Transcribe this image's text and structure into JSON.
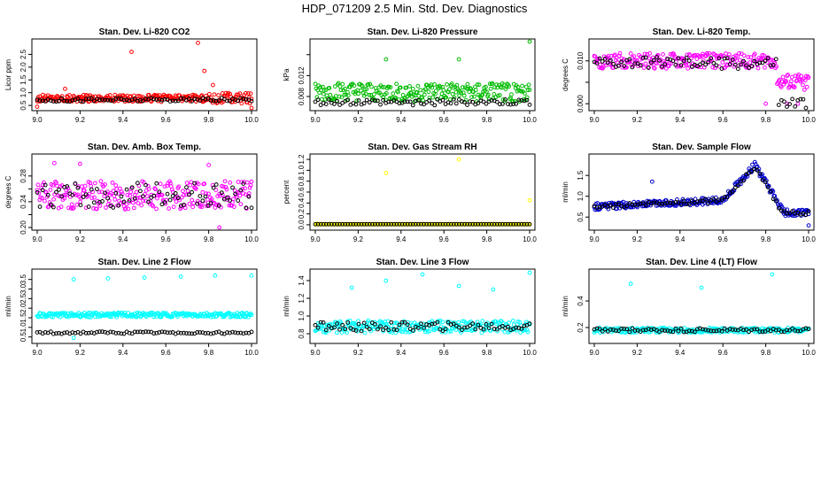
{
  "page_title": "HDP_071209  2.5 Min. Std. Dev. Diagnostics",
  "chart_data": [
    {
      "id": "co2",
      "type": "scatter",
      "title": "Stan. Dev. Li-820 CO2",
      "ylabel": "Licor ppm",
      "xlim": [
        9.0,
        10.0
      ],
      "ylim": [
        0.4,
        3.0
      ],
      "xticks": [
        "9.0",
        "9.2",
        "9.4",
        "9.6",
        "9.8",
        "10.0"
      ],
      "yticks": [
        0.5,
        1.0,
        1.5,
        2.0,
        2.5
      ],
      "ytick_labels": [
        "0.5",
        "1.0",
        "1.5",
        "2.0",
        "2.5"
      ],
      "color": "#ff0000",
      "series_base": 0.78,
      "series_spread": 0.14,
      "ref_base": 0.72,
      "ref_spread": 0.07,
      "outliers": [
        [
          9.44,
          2.6
        ],
        [
          9.75,
          2.95
        ],
        [
          9.78,
          1.85
        ],
        [
          9.82,
          1.3
        ],
        [
          9.13,
          1.15
        ],
        [
          9.0,
          0.45
        ],
        [
          10.0,
          0.4
        ]
      ]
    },
    {
      "id": "press",
      "type": "scatter",
      "title": "Stan. Dev. Li-820 Pressure",
      "ylabel": "kPa",
      "xlim": [
        9.0,
        10.0
      ],
      "ylim": [
        0.0058,
        0.0185
      ],
      "xticks": [
        "9.0",
        "9.2",
        "9.4",
        "9.6",
        "9.8",
        "10.0"
      ],
      "yticks": [
        0.008,
        0.012,
        0.016
      ],
      "ytick_labels": [
        "0.008",
        "0.012",
        ""
      ],
      "color": "#00bb00",
      "series_base": 0.0088,
      "series_spread": 0.0018,
      "ref_base": 0.0069,
      "ref_spread": 0.0006,
      "outliers": [
        [
          9.33,
          0.0151
        ],
        [
          9.67,
          0.0151
        ],
        [
          10.0,
          0.0185
        ]
      ]
    },
    {
      "id": "temp",
      "type": "scatter",
      "title": "Stan. Dev. Li-820 Temp.",
      "ylabel": "degrees C",
      "xlim": [
        9.0,
        10.0
      ],
      "ylim": [
        -0.001,
        0.0145
      ],
      "xticks": [
        "9.0",
        "9.2",
        "9.4",
        "9.6",
        "9.8",
        "10.0"
      ],
      "yticks": [
        0.0,
        0.005,
        0.01
      ],
      "ytick_labels": [
        "0.000",
        "",
        "0.010"
      ],
      "color": "#ff00ff",
      "series_base": 0.01,
      "series_spread": 0.0018,
      "ref_base": 0.0095,
      "ref_spread": 0.0014,
      "outliers": [
        [
          9.8,
          0.0
        ],
        [
          9.9,
          0.0
        ],
        [
          9.95,
          0.0
        ]
      ]
    },
    {
      "id": "box",
      "type": "scatter",
      "title": "Stan. Dev. Amb. Box Temp.",
      "ylabel": "degrees C",
      "xlim": [
        9.0,
        10.0
      ],
      "ylim": [
        0.2,
        0.31
      ],
      "xticks": [
        "9.0",
        "9.2",
        "9.4",
        "9.6",
        "9.8",
        "10.0"
      ],
      "yticks": [
        0.2,
        0.22,
        0.24,
        0.26,
        0.28
      ],
      "ytick_labels": [
        "0.20",
        "",
        "0.24",
        "",
        "0.28"
      ],
      "color": "#ff00ff",
      "series_base": 0.25,
      "series_spread": 0.022,
      "ref_base": 0.25,
      "ref_spread": 0.02,
      "outliers": [
        [
          9.08,
          0.3
        ],
        [
          9.2,
          0.299
        ],
        [
          9.8,
          0.297
        ],
        [
          9.85,
          0.2
        ]
      ]
    },
    {
      "id": "rh",
      "type": "scatter",
      "title": "Stan. Dev. Gas Stream RH",
      "ylabel": "percent",
      "xlim": [
        9.0,
        10.0
      ],
      "ylim": [
        -0.05,
        1.25
      ],
      "xticks": [
        "9.0",
        "9.2",
        "9.4",
        "9.6",
        "9.8",
        "10.0"
      ],
      "yticks": [
        0.0,
        0.2,
        0.4,
        0.6,
        0.8,
        1.0,
        1.2
      ],
      "ytick_labels": [
        "0.0",
        "0.2",
        "0.4",
        "0.6",
        "0.8",
        "1.0",
        "1.2"
      ],
      "color": "#ffff00",
      "series_base": 0.01,
      "series_spread": 0.0,
      "ref_base": 0.01,
      "ref_spread": 0.0,
      "outliers": [
        [
          9.33,
          0.95
        ],
        [
          9.67,
          1.2
        ],
        [
          10.0,
          0.45
        ],
        [
          9.01,
          0.02
        ]
      ]
    },
    {
      "id": "flow",
      "type": "scatter",
      "title": "Stan. Dev. Sample Flow",
      "ylabel": "ml/min",
      "xlim": [
        9.0,
        10.0
      ],
      "ylim": [
        0.25,
        1.95
      ],
      "xticks": [
        "9.0",
        "9.2",
        "9.4",
        "9.6",
        "9.8",
        "10.0"
      ],
      "yticks": [
        0.5,
        1.0,
        1.5
      ],
      "ytick_labels": [
        "0.5",
        "1.0",
        "1.5"
      ],
      "color": "#0000cc",
      "series_base": 0.85,
      "series_spread": 0.08,
      "ref_base": 0.85,
      "ref_spread": 0.05,
      "outliers": [
        [
          9.27,
          1.35
        ],
        [
          10.0,
          0.3
        ]
      ],
      "shape": "flow"
    },
    {
      "id": "l2",
      "type": "scatter",
      "title": "Stan. Dev. Line 2 Flow",
      "ylabel": "ml/min",
      "xlim": [
        9.0,
        10.0
      ],
      "ylim": [
        0.3,
        3.9
      ],
      "xticks": [
        "9.0",
        "9.2",
        "9.4",
        "9.6",
        "9.8",
        "10.0"
      ],
      "yticks": [
        0.5,
        1.0,
        1.5,
        2.0,
        2.5,
        3.0,
        3.5
      ],
      "ytick_labels": [
        "0.5",
        "1.0",
        "1.5",
        "2.0",
        "2.5",
        "3.0",
        "3.5"
      ],
      "color": "#00ffff",
      "series_base": 1.65,
      "series_spread": 0.12,
      "ref_base": 0.72,
      "ref_spread": 0.06,
      "outliers": [
        [
          9.17,
          3.5
        ],
        [
          9.33,
          3.55
        ],
        [
          9.5,
          3.6
        ],
        [
          9.67,
          3.65
        ],
        [
          9.83,
          3.7
        ],
        [
          10.0,
          3.7
        ],
        [
          9.17,
          0.45
        ]
      ]
    },
    {
      "id": "l3",
      "type": "scatter",
      "title": "Stan. Dev. Line 3 Flow",
      "ylabel": "ml/min",
      "xlim": [
        9.0,
        10.0
      ],
      "ylim": [
        0.72,
        1.5
      ],
      "xticks": [
        "9.0",
        "9.2",
        "9.4",
        "9.6",
        "9.8",
        "10.0"
      ],
      "yticks": [
        0.8,
        1.0,
        1.2,
        1.4
      ],
      "ytick_labels": [
        "0.8",
        "1.0",
        "1.2",
        "1.4"
      ],
      "color": "#00ffff",
      "series_base": 0.88,
      "series_spread": 0.07,
      "ref_base": 0.88,
      "ref_spread": 0.05,
      "outliers": [
        [
          9.17,
          1.32
        ],
        [
          9.33,
          1.4
        ],
        [
          9.5,
          1.47
        ],
        [
          9.67,
          1.34
        ],
        [
          9.83,
          1.3
        ],
        [
          10.0,
          1.49
        ]
      ]
    },
    {
      "id": "l4",
      "type": "scatter",
      "title": "Stan. Dev. Line 4 (LT) Flow",
      "ylabel": "ml/min",
      "xlim": [
        9.0,
        10.0
      ],
      "ylim": [
        0.1,
        0.62
      ],
      "xticks": [
        "9.0",
        "9.2",
        "9.4",
        "9.6",
        "9.8",
        "10.0"
      ],
      "yticks": [
        0.2,
        0.4
      ],
      "ytick_labels": [
        "0.2",
        "0.4"
      ],
      "color": "#00ffff",
      "series_base": 0.18,
      "series_spread": 0.018,
      "ref_base": 0.18,
      "ref_spread": 0.015,
      "outliers": [
        [
          9.17,
          0.53
        ],
        [
          9.5,
          0.5
        ],
        [
          9.83,
          0.6
        ]
      ]
    }
  ]
}
